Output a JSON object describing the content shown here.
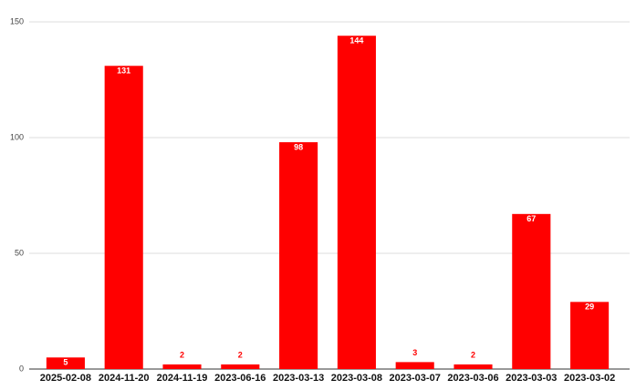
{
  "chart_data": {
    "type": "bar",
    "categories": [
      "2025-02-08",
      "2024-11-20",
      "2024-11-19",
      "2023-06-16",
      "2023-03-13",
      "2023-03-08",
      "2023-03-07",
      "2023-03-06",
      "2023-03-03",
      "2023-03-02"
    ],
    "values": [
      5,
      131,
      2,
      2,
      98,
      144,
      3,
      2,
      67,
      29
    ],
    "color": "#ff0000",
    "ylim": [
      0,
      150
    ],
    "yticks": [
      0,
      50,
      100,
      150
    ],
    "grid": true
  }
}
